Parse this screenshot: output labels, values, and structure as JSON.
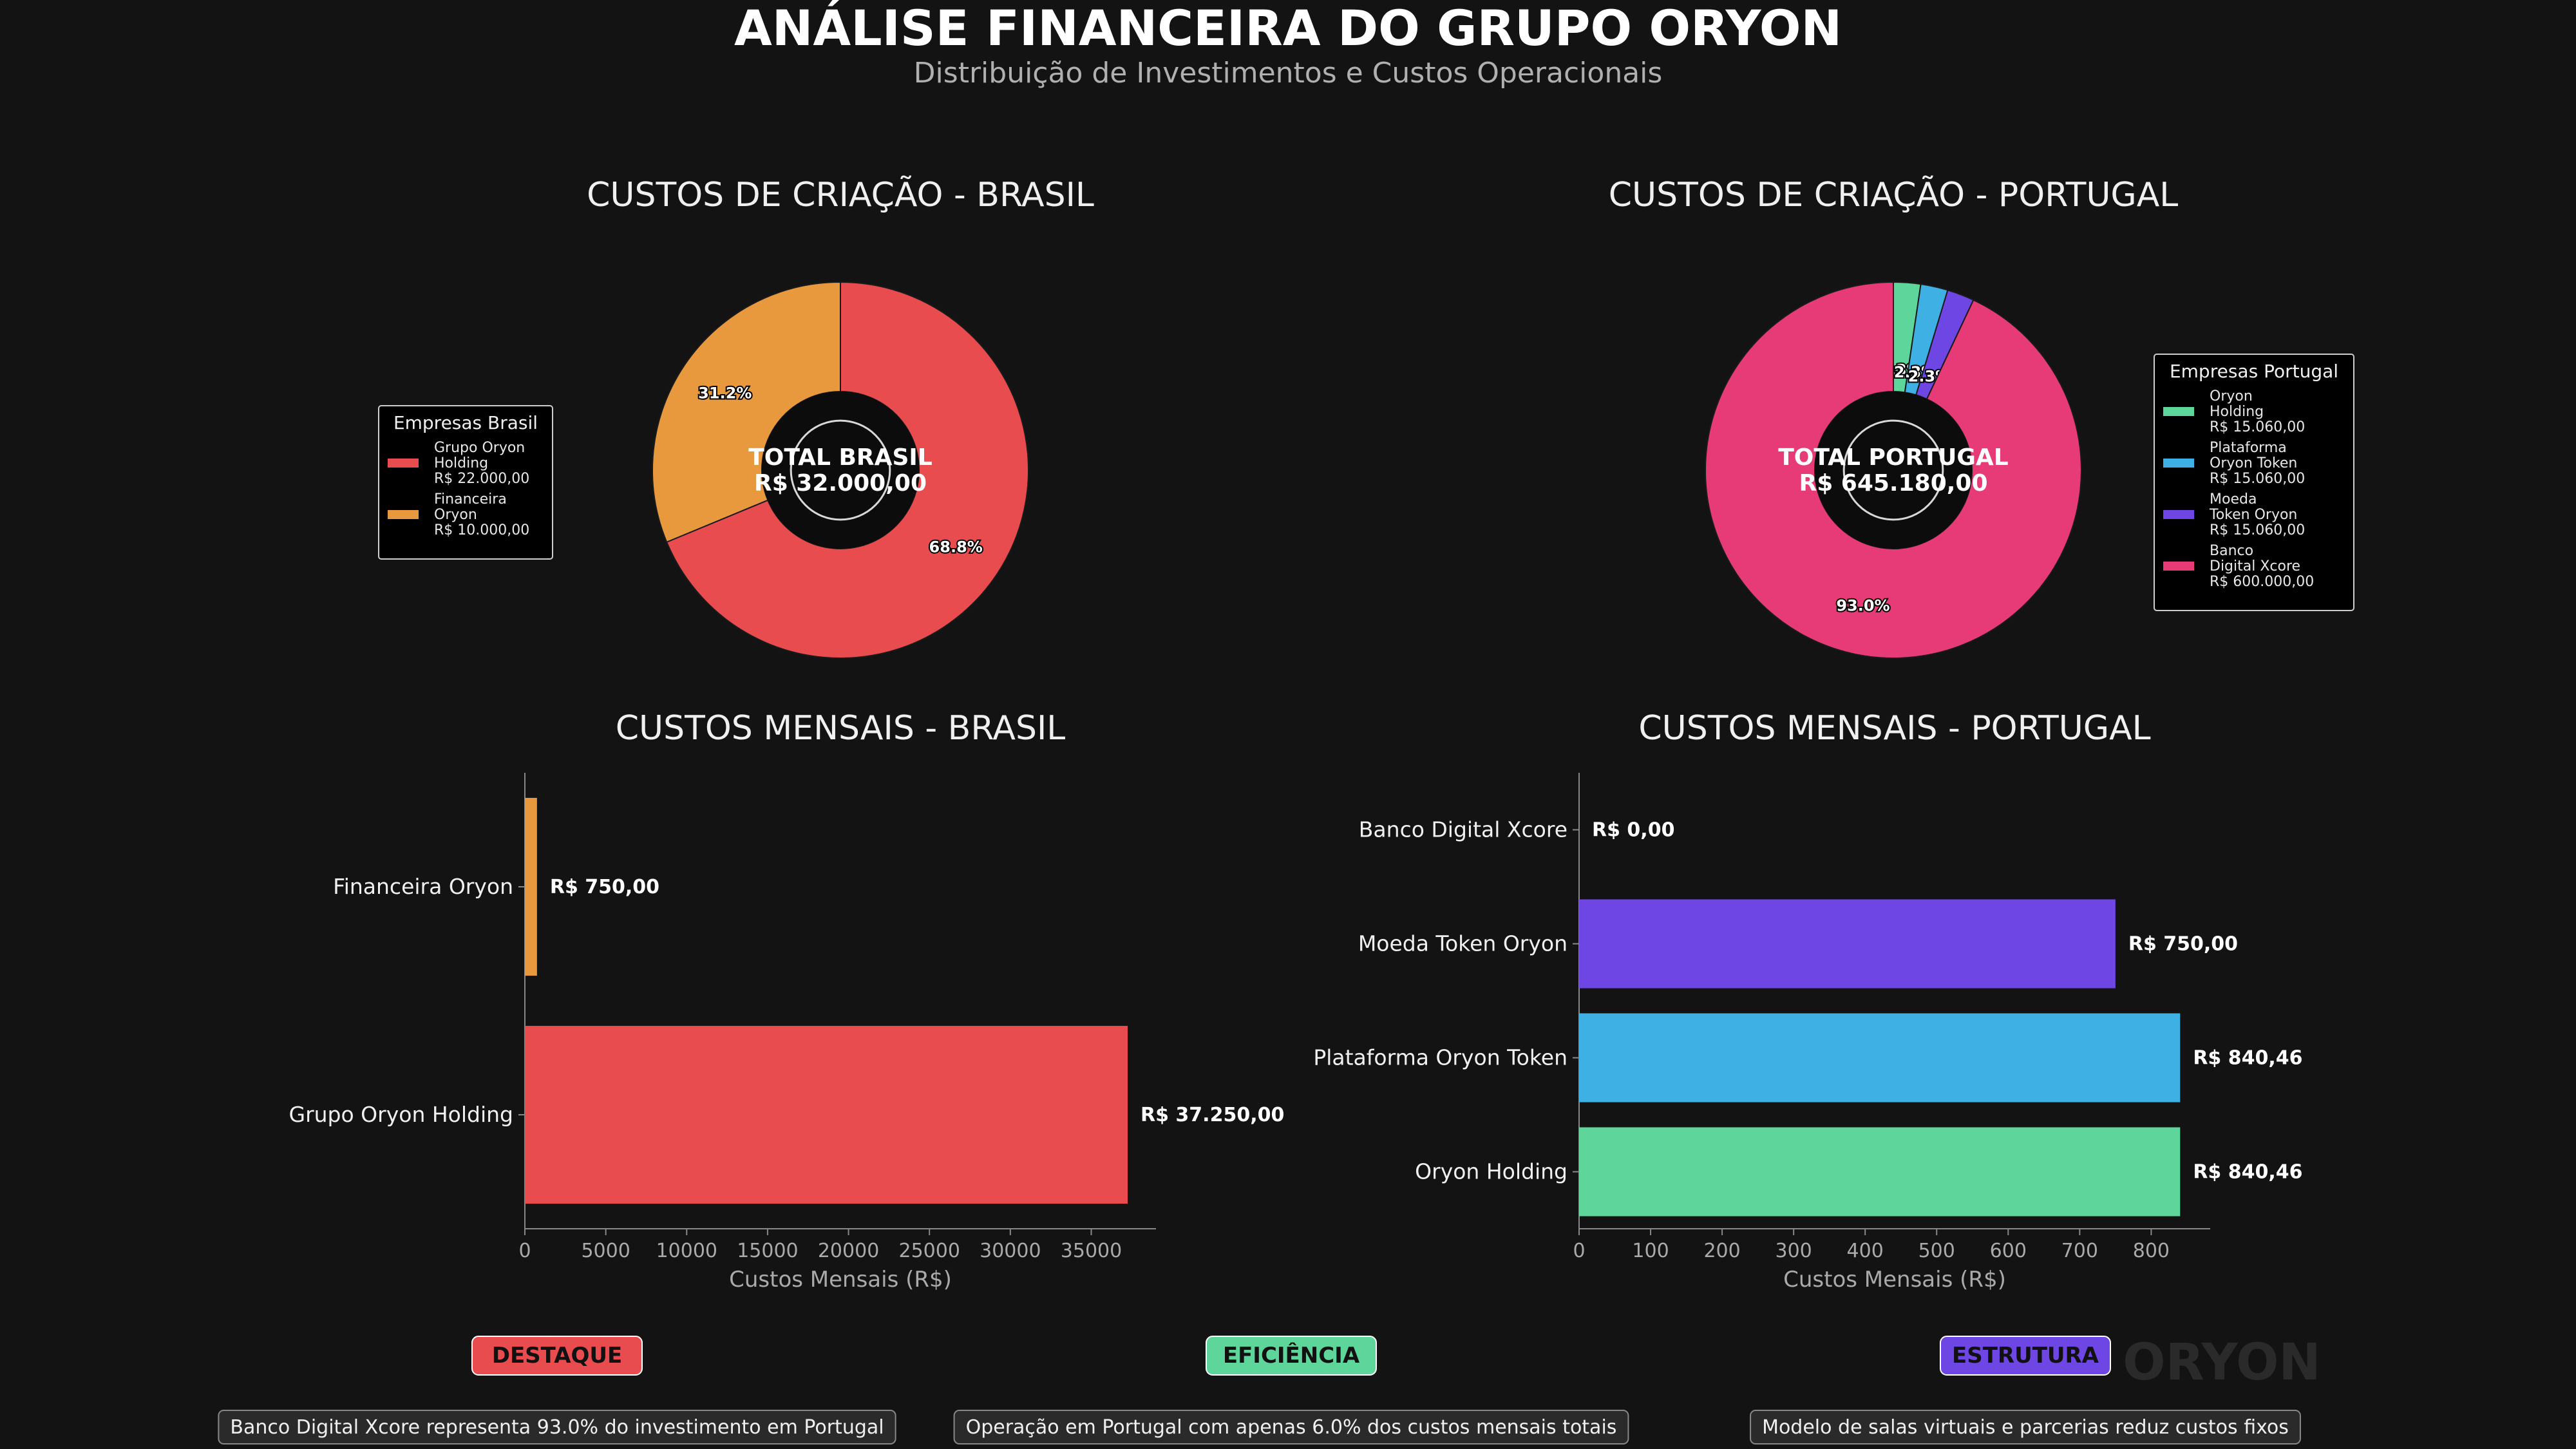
{
  "title": "ANÁLISE FINANCEIRA DO GRUPO ORYON",
  "subtitle": "Distribuição de Investimentos e Custos Operacionais",
  "watermark": "ORYON",
  "chart_data": [
    {
      "type": "pie",
      "title": "CUSTOS DE CRIAÇÃO - BRASIL",
      "center_label": [
        "TOTAL BRASIL",
        "R$ 32.000,00"
      ],
      "legend_title": "Empresas Brasil",
      "legend_position": "left",
      "categories": [
        "Grupo Oryon Holding",
        "Financeira Oryon"
      ],
      "values": [
        22000,
        10000
      ],
      "percent_labels": [
        "68.8%",
        "31.2%"
      ],
      "legend_labels": [
        [
          "Grupo Oryon",
          "Holding",
          "R$ 22.000,00"
        ],
        [
          "Financeira",
          "Oryon",
          "R$ 10.000,00"
        ]
      ],
      "colors": [
        "#e84c4e",
        "#e8993e"
      ]
    },
    {
      "type": "pie",
      "title": "CUSTOS DE CRIAÇÃO - PORTUGAL",
      "center_label": [
        "TOTAL PORTUGAL",
        "R$ 645.180,00"
      ],
      "legend_title": "Empresas Portugal",
      "legend_position": "right",
      "categories": [
        "Oryon Holding",
        "Plataforma Oryon Token",
        "Moeda Token Oryon",
        "Banco Digital Xcore"
      ],
      "values": [
        15060,
        15060,
        15060,
        600000
      ],
      "percent_labels": [
        "2.3%",
        "2.3%",
        "2.3%",
        "93.0%"
      ],
      "legend_labels": [
        [
          "Oryon",
          "Holding",
          "R$ 15.060,00"
        ],
        [
          "Plataforma",
          "Oryon Token",
          "R$ 15.060,00"
        ],
        [
          "Moeda",
          "Token Oryon",
          "R$ 15.060,00"
        ],
        [
          "Banco",
          "Digital Xcore",
          "R$ 600.000,00"
        ]
      ],
      "colors": [
        "#5ed69b",
        "#3eb0e4",
        "#6e46e3",
        "#e63b76"
      ]
    },
    {
      "type": "bar",
      "orientation": "horizontal",
      "title": "CUSTOS MENSAIS - BRASIL",
      "xlabel": "Custos Mensais (R$)",
      "categories": [
        "Grupo Oryon Holding",
        "Financeira Oryon"
      ],
      "values": [
        37250,
        750
      ],
      "value_labels": [
        "R$ 37.250,00",
        "R$ 750,00"
      ],
      "colors": [
        "#e84c4e",
        "#e8993e"
      ],
      "xlim": [
        0,
        39000
      ],
      "xticks": [
        0,
        5000,
        10000,
        15000,
        20000,
        25000,
        30000,
        35000
      ]
    },
    {
      "type": "bar",
      "orientation": "horizontal",
      "title": "CUSTOS MENSAIS - PORTUGAL",
      "xlabel": "Custos Mensais (R$)",
      "categories": [
        "Oryon Holding",
        "Plataforma Oryon Token",
        "Moeda Token Oryon",
        "Banco Digital Xcore"
      ],
      "values": [
        840.46,
        840.46,
        750,
        0
      ],
      "value_labels": [
        "R$ 840,46",
        "R$ 840,46",
        "R$ 750,00",
        "R$ 0,00"
      ],
      "colors": [
        "#5ed69b",
        "#3eb0e4",
        "#6e46e3",
        "#e63b76"
      ],
      "xlim": [
        0,
        882.5
      ],
      "xticks": [
        0,
        100,
        200,
        300,
        400,
        500,
        600,
        700,
        800
      ]
    }
  ],
  "highlights": [
    {
      "badge": "DESTAQUE",
      "color": "#e84c4e",
      "text": "Banco Digital Xcore representa 93.0% do investimento em Portugal"
    },
    {
      "badge": "EFICIÊNCIA",
      "color": "#5ed69b",
      "text": "Operação em Portugal com apenas 6.0% dos custos mensais totais"
    },
    {
      "badge": "ESTRUTURA",
      "color": "#6e46e3",
      "text": "Modelo de salas virtuais e parcerias reduz custos fixos"
    }
  ]
}
